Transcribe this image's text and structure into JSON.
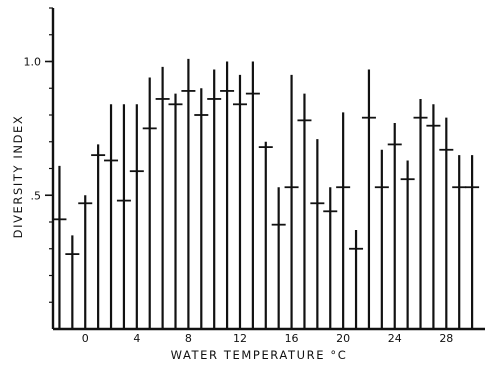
{
  "chart_data": {
    "type": "scatter",
    "title": "",
    "xlabel": "WATER TEMPERATURE °C",
    "ylabel": "DIVERSITY INDEX",
    "xlim": [
      -2.5,
      31
    ],
    "ylim": [
      0.0,
      1.2
    ],
    "x_ticks": [
      0,
      4,
      8,
      12,
      16,
      20,
      24,
      28
    ],
    "x_tick_labels": [
      "0",
      "4",
      "8",
      "12",
      "16",
      "20",
      "24",
      "28"
    ],
    "y_ticks": [
      0.5,
      1.0
    ],
    "y_tick_labels": [
      ".5",
      "1.0"
    ],
    "grid": false,
    "legend": "none",
    "series": [
      {
        "x": [
          -2,
          -1,
          0,
          1,
          2,
          3,
          4,
          5,
          6,
          7,
          8,
          9,
          10,
          11,
          12,
          13,
          14,
          15,
          16,
          17,
          18,
          19,
          20,
          21,
          22,
          23,
          24,
          25,
          26,
          27,
          28,
          29,
          30
        ],
        "mean": [
          0.41,
          0.28,
          0.47,
          0.65,
          0.63,
          0.48,
          0.59,
          0.75,
          0.86,
          0.84,
          0.89,
          0.8,
          0.86,
          0.89,
          0.84,
          0.88,
          0.68,
          0.39,
          0.53,
          0.78,
          0.47,
          0.44,
          0.53,
          0.3,
          0.79,
          0.53,
          0.69,
          0.56,
          0.79,
          0.76,
          0.67,
          0.53,
          0.53
        ],
        "low": [
          0.0,
          0.0,
          0.0,
          0.0,
          0.0,
          0.0,
          0.0,
          0.0,
          0.0,
          0.0,
          0.0,
          0.0,
          0.0,
          0.0,
          0.0,
          0.0,
          0.0,
          0.0,
          0.0,
          0.0,
          0.0,
          0.0,
          0.0,
          0.0,
          0.0,
          0.0,
          0.0,
          0.0,
          0.0,
          0.0,
          0.0,
          0.0,
          0.0
        ],
        "high": [
          0.61,
          0.35,
          0.5,
          0.69,
          0.84,
          0.84,
          0.84,
          0.94,
          0.98,
          0.88,
          1.01,
          0.9,
          0.97,
          1.0,
          0.95,
          1.0,
          0.7,
          0.53,
          0.95,
          0.88,
          0.71,
          0.53,
          0.81,
          0.37,
          0.97,
          0.67,
          0.77,
          0.63,
          0.86,
          0.84,
          0.79,
          0.65,
          0.65
        ]
      }
    ]
  }
}
